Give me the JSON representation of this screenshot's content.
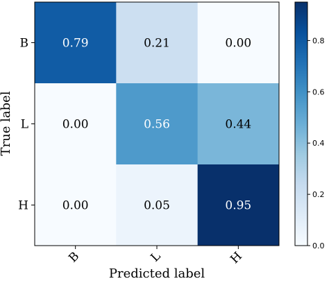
{
  "chart_data": {
    "type": "heatmap",
    "title": "",
    "xlabel": "Predicted label",
    "ylabel": "True label",
    "x_categories": [
      "B",
      "L",
      "H"
    ],
    "y_categories": [
      "B",
      "L",
      "H"
    ],
    "values": [
      [
        0.79,
        0.21,
        0.0
      ],
      [
        0.0,
        0.56,
        0.44
      ],
      [
        0.0,
        0.05,
        0.95
      ]
    ],
    "value_labels": [
      [
        "0.79",
        "0.21",
        "0.00"
      ],
      [
        "0.00",
        "0.56",
        "0.44"
      ],
      [
        "0.00",
        "0.05",
        "0.95"
      ]
    ],
    "colormap": "Blues",
    "colorbar": {
      "range": [
        0.0,
        0.95
      ],
      "ticks": [
        0.0,
        0.2,
        0.4,
        0.6,
        0.8
      ],
      "tick_labels": [
        "0.0",
        "0.2",
        "0.4",
        "0.6",
        "0.8"
      ]
    }
  }
}
